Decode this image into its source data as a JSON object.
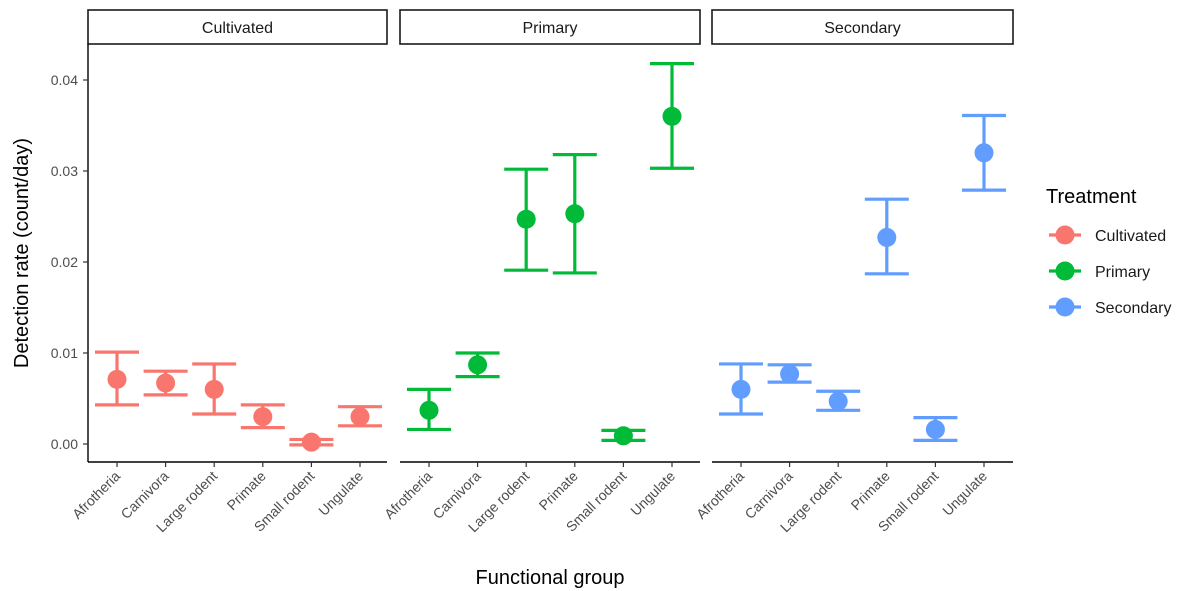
{
  "chart_data": {
    "type": "scatter",
    "subtype": "point-errorbar-faceted",
    "xlabel": "Functional group",
    "ylabel": "Detection rate (count/day)",
    "ylim": [
      -0.002,
      0.044
    ],
    "yticks": [
      0.0,
      0.01,
      0.02,
      0.03,
      0.04
    ],
    "ytick_labels": [
      "0.00",
      "0.01",
      "0.02",
      "0.03",
      "0.04"
    ],
    "categories": [
      "Afrotheria",
      "Carnivora",
      "Large rodent",
      "Primate",
      "Small rodent",
      "Ungulate"
    ],
    "grid": false,
    "legend": {
      "title": "Treatment",
      "position": "right",
      "entries": [
        "Cultivated",
        "Primary",
        "Secondary"
      ]
    },
    "facets": [
      {
        "name": "Cultivated",
        "color": "#F8766D",
        "points": [
          {
            "group": "Afrotheria",
            "y": 0.0071,
            "ymin": 0.0043,
            "ymax": 0.0101
          },
          {
            "group": "Carnivora",
            "y": 0.0067,
            "ymin": 0.0054,
            "ymax": 0.008
          },
          {
            "group": "Large rodent",
            "y": 0.006,
            "ymin": 0.0033,
            "ymax": 0.0088
          },
          {
            "group": "Primate",
            "y": 0.003,
            "ymin": 0.0018,
            "ymax": 0.0043
          },
          {
            "group": "Small rodent",
            "y": 0.0002,
            "ymin": -0.0001,
            "ymax": 0.0005
          },
          {
            "group": "Ungulate",
            "y": 0.003,
            "ymin": 0.002,
            "ymax": 0.0041
          }
        ]
      },
      {
        "name": "Primary",
        "color": "#00BA38",
        "points": [
          {
            "group": "Afrotheria",
            "y": 0.0037,
            "ymin": 0.0016,
            "ymax": 0.006
          },
          {
            "group": "Carnivora",
            "y": 0.0087,
            "ymin": 0.0074,
            "ymax": 0.01
          },
          {
            "group": "Large rodent",
            "y": 0.0247,
            "ymin": 0.0191,
            "ymax": 0.0302
          },
          {
            "group": "Primate",
            "y": 0.0253,
            "ymin": 0.0188,
            "ymax": 0.0318
          },
          {
            "group": "Small rodent",
            "y": 0.0009,
            "ymin": 0.0004,
            "ymax": 0.0015
          },
          {
            "group": "Ungulate",
            "y": 0.036,
            "ymin": 0.0303,
            "ymax": 0.0418
          }
        ]
      },
      {
        "name": "Secondary",
        "color": "#619CFF",
        "points": [
          {
            "group": "Afrotheria",
            "y": 0.006,
            "ymin": 0.0033,
            "ymax": 0.0088
          },
          {
            "group": "Carnivora",
            "y": 0.0077,
            "ymin": 0.0068,
            "ymax": 0.0087
          },
          {
            "group": "Large rodent",
            "y": 0.0047,
            "ymin": 0.0037,
            "ymax": 0.0058
          },
          {
            "group": "Primate",
            "y": 0.0227,
            "ymin": 0.0187,
            "ymax": 0.0269
          },
          {
            "group": "Small rodent",
            "y": 0.0016,
            "ymin": 0.0004,
            "ymax": 0.0029
          },
          {
            "group": "Ungulate",
            "y": 0.032,
            "ymin": 0.0279,
            "ymax": 0.0361
          }
        ]
      }
    ]
  }
}
